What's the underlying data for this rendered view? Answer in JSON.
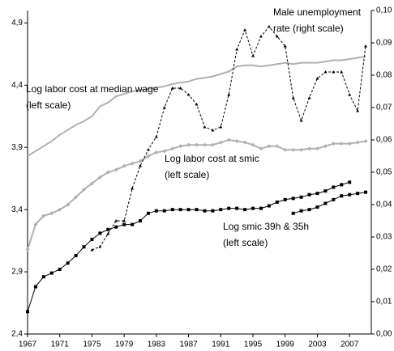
{
  "chart_data": {
    "type": "line",
    "x": [
      1967,
      1968,
      1969,
      1970,
      1971,
      1972,
      1973,
      1974,
      1975,
      1976,
      1977,
      1978,
      1979,
      1980,
      1981,
      1982,
      1983,
      1984,
      1985,
      1986,
      1987,
      1988,
      1989,
      1990,
      1991,
      1992,
      1993,
      1994,
      1995,
      1996,
      1997,
      1998,
      1999,
      2000,
      2001,
      2002,
      2003,
      2004,
      2005,
      2006,
      2007,
      2008,
      2009
    ],
    "xlim": [
      1967,
      2009.7
    ],
    "xticks": [
      1967,
      1971,
      1975,
      1979,
      1983,
      1987,
      1991,
      1995,
      1999,
      2003,
      2007
    ],
    "ylim": [
      2.4,
      5.0
    ],
    "yticks": [
      {
        "value": 2.4,
        "label": "2,4"
      },
      {
        "value": 2.9,
        "label": "2,9"
      },
      {
        "value": 3.4,
        "label": "3,4"
      },
      {
        "value": 3.9,
        "label": "3,9"
      },
      {
        "value": 4.4,
        "label": "4,4"
      },
      {
        "value": 4.9,
        "label": "4,9"
      }
    ],
    "y2lim": [
      0,
      0.1
    ],
    "y2ticks": [
      {
        "value": 0,
        "label": "0,00"
      },
      {
        "value": 0.01,
        "label": "0,01"
      },
      {
        "value": 0.02,
        "label": "0,02"
      },
      {
        "value": 0.03,
        "label": "0,03"
      },
      {
        "value": 0.04,
        "label": "0,04"
      },
      {
        "value": 0.05,
        "label": "0,05"
      },
      {
        "value": 0.06,
        "label": "0,06"
      },
      {
        "value": 0.07,
        "label": "0,07"
      },
      {
        "value": 0.08,
        "label": "0,08"
      },
      {
        "value": 0.09,
        "label": "0,09"
      },
      {
        "value": 0.1,
        "label": "0,10"
      }
    ],
    "grid": false,
    "series": [
      {
        "color": "#b0b0b0",
        "marker": "none",
        "dashed": false,
        "values": [
          3.83,
          3.87,
          3.91,
          3.95,
          4.0,
          4.04,
          4.08,
          4.11,
          4.15,
          4.23,
          4.26,
          4.31,
          4.33,
          4.35,
          4.36,
          4.37,
          4.38,
          4.39,
          4.41,
          4.42,
          4.43,
          4.45,
          4.46,
          4.47,
          4.49,
          4.51,
          4.55,
          4.56,
          4.56,
          4.55,
          4.56,
          4.57,
          4.58,
          4.57,
          4.58,
          4.58,
          4.58,
          4.59,
          4.6,
          4.6,
          4.61,
          4.62,
          4.63
        ]
      },
      {
        "color": "#b0b0b0",
        "marker": "diamond",
        "dashed": false,
        "values": [
          3.08,
          3.28,
          3.35,
          3.37,
          3.4,
          3.44,
          3.5,
          3.56,
          3.61,
          3.66,
          3.7,
          3.72,
          3.75,
          3.77,
          3.79,
          3.83,
          3.86,
          3.87,
          3.89,
          3.91,
          3.92,
          3.92,
          3.92,
          3.92,
          3.94,
          3.96,
          3.95,
          3.94,
          3.92,
          3.89,
          3.91,
          3.91,
          3.88,
          3.88,
          3.88,
          3.89,
          3.89,
          3.91,
          3.93,
          3.93,
          3.93,
          3.94,
          3.95
        ]
      },
      {
        "color": "#000000",
        "marker": "square",
        "dashed": false,
        "values": [
          2.58,
          2.78,
          2.86,
          2.89,
          2.92,
          2.97,
          3.03,
          3.1,
          3.16,
          3.21,
          3.24,
          3.26,
          3.28,
          3.28,
          3.31,
          3.37,
          3.39,
          3.39,
          3.4,
          3.4,
          3.4,
          3.4,
          3.39,
          3.39,
          3.4,
          3.41,
          3.41,
          3.4,
          3.41,
          3.41,
          3.43,
          3.46,
          3.48,
          3.49,
          3.5,
          3.52,
          3.53,
          3.55,
          3.58,
          3.6,
          3.62,
          null,
          null
        ]
      },
      {
        "color": "#000000",
        "marker": "square",
        "dashed": false,
        "values": [
          null,
          null,
          null,
          null,
          null,
          null,
          null,
          null,
          null,
          null,
          null,
          null,
          null,
          null,
          null,
          null,
          null,
          null,
          null,
          null,
          null,
          null,
          null,
          null,
          null,
          null,
          null,
          null,
          null,
          null,
          null,
          null,
          null,
          3.37,
          3.39,
          3.4,
          3.42,
          3.45,
          3.48,
          3.51,
          3.52,
          3.53,
          3.54
        ]
      },
      {
        "color": "#000000",
        "marker": "triangle",
        "dashed": true,
        "axis": "y2",
        "values": [
          null,
          null,
          null,
          null,
          null,
          null,
          null,
          null,
          0.026,
          0.027,
          0.031,
          0.035,
          0.035,
          0.045,
          0.052,
          0.057,
          0.061,
          0.07,
          0.076,
          0.076,
          0.074,
          0.071,
          0.064,
          0.063,
          0.064,
          0.074,
          0.088,
          0.094,
          0.086,
          0.092,
          0.095,
          0.092,
          0.089,
          0.073,
          0.066,
          0.073,
          0.079,
          0.081,
          0.081,
          0.081,
          0.074,
          0.069,
          0.089
        ]
      }
    ],
    "annotations": [
      {
        "lines": [
          "Male unemployment",
          "rate (right scale)"
        ]
      },
      {
        "lines": [
          "Log labor cost at median wage",
          "(left scale)"
        ]
      },
      {
        "lines": [
          "Log labor cost at smic",
          "(left scale)"
        ]
      },
      {
        "lines": [
          "Log smic 39h & 35h",
          "(left scale)"
        ]
      }
    ]
  }
}
